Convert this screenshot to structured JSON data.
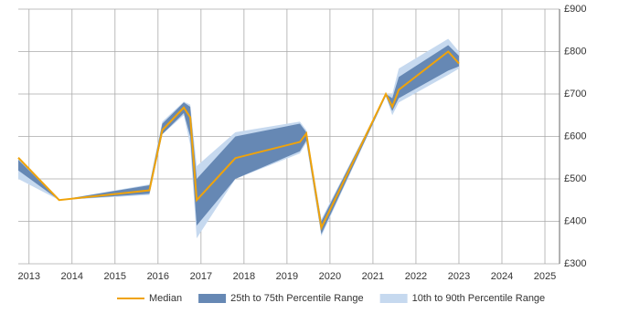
{
  "chart_data": {
    "type": "band-line",
    "x": [
      2012.75,
      2013.7,
      2015.8,
      2016.1,
      2016.6,
      2016.75,
      2016.9,
      2017.8,
      2019.3,
      2019.45,
      2019.8,
      2021.3,
      2021.45,
      2021.6,
      2022.75,
      2023.0
    ],
    "series": [
      {
        "name": "10th to 90th Percentile Range",
        "color": "#c6d9ef",
        "low": [
          500,
          450,
          462,
          605,
          650,
          580,
          360,
          500,
          560,
          585,
          365,
          695,
          650,
          680,
          745,
          760
        ],
        "high": [
          550,
          450,
          487,
          635,
          682,
          675,
          530,
          610,
          635,
          615,
          405,
          700,
          700,
          760,
          830,
          800
        ]
      },
      {
        "name": "25th to 75th Percentile Range",
        "color": "#6688b4",
        "low": [
          520,
          450,
          465,
          605,
          655,
          600,
          390,
          500,
          565,
          590,
          370,
          695,
          660,
          690,
          755,
          765
        ],
        "high": [
          545,
          450,
          485,
          630,
          680,
          670,
          500,
          600,
          630,
          610,
          400,
          700,
          690,
          740,
          815,
          790
        ]
      },
      {
        "name": "Median",
        "color": "#f0a30a",
        "values": [
          550,
          450,
          473,
          615,
          668,
          645,
          450,
          549,
          587,
          607,
          385,
          700,
          670,
          710,
          800,
          772
        ]
      }
    ],
    "xlim": [
      2012.75,
      2025.34
    ],
    "xticks": [
      2013,
      2014,
      2015,
      2016,
      2017,
      2018,
      2019,
      2020,
      2021,
      2022,
      2023,
      2024,
      2025
    ],
    "ylim": [
      300,
      900
    ],
    "yticks": [
      {
        "value": 300,
        "label": "£300"
      },
      {
        "value": 400,
        "label": "£400"
      },
      {
        "value": 500,
        "label": "£500"
      },
      {
        "value": 600,
        "label": "£600"
      },
      {
        "value": 700,
        "label": "£700"
      },
      {
        "value": 800,
        "label": "£800"
      },
      {
        "value": 900,
        "label": "£900"
      }
    ],
    "grid": true,
    "legend": "bottom"
  }
}
